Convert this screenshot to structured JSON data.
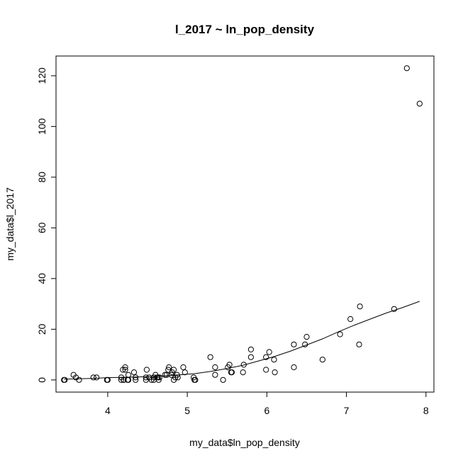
{
  "chart_data": {
    "type": "scatter",
    "title": "l_2017 ~ ln_pop_density",
    "xlabel": "my_data$ln_pop_density",
    "ylabel": "my_data$l_2017",
    "xlim": [
      3.35,
      8.1
    ],
    "ylim": [
      -4.8,
      127.8
    ],
    "xticks": [
      "4",
      "5",
      "6",
      "7",
      "8"
    ],
    "yticks": [
      "0",
      "20",
      "40",
      "60",
      "80",
      "100",
      "120"
    ],
    "grid": false,
    "legend": "none",
    "points": [
      [
        3.45,
        0
      ],
      [
        3.46,
        0
      ],
      [
        3.57,
        2
      ],
      [
        3.6,
        1
      ],
      [
        3.64,
        0
      ],
      [
        3.82,
        1
      ],
      [
        3.86,
        1
      ],
      [
        3.99,
        0
      ],
      [
        4.0,
        0
      ],
      [
        4.17,
        1
      ],
      [
        4.17,
        0
      ],
      [
        4.2,
        0
      ],
      [
        4.19,
        4
      ],
      [
        4.2,
        0
      ],
      [
        4.22,
        5
      ],
      [
        4.22,
        4
      ],
      [
        4.25,
        0
      ],
      [
        4.26,
        2
      ],
      [
        4.26,
        0
      ],
      [
        4.33,
        3
      ],
      [
        4.35,
        1
      ],
      [
        4.35,
        0
      ],
      [
        4.48,
        1
      ],
      [
        4.48,
        0
      ],
      [
        4.49,
        4
      ],
      [
        4.52,
        1
      ],
      [
        4.55,
        0
      ],
      [
        4.58,
        1
      ],
      [
        4.58,
        0
      ],
      [
        4.6,
        2
      ],
      [
        4.62,
        1
      ],
      [
        4.63,
        1
      ],
      [
        4.64,
        0
      ],
      [
        4.65,
        1
      ],
      [
        4.72,
        2
      ],
      [
        4.74,
        2
      ],
      [
        4.76,
        4
      ],
      [
        4.77,
        5
      ],
      [
        4.8,
        2
      ],
      [
        4.81,
        3
      ],
      [
        4.83,
        4
      ],
      [
        4.83,
        0
      ],
      [
        4.85,
        1
      ],
      [
        4.87,
        2
      ],
      [
        4.88,
        1
      ],
      [
        4.95,
        5
      ],
      [
        4.97,
        3
      ],
      [
        5.08,
        1
      ],
      [
        5.09,
        0
      ],
      [
        5.1,
        0
      ],
      [
        5.29,
        9
      ],
      [
        5.35,
        5
      ],
      [
        5.35,
        2
      ],
      [
        5.45,
        0
      ],
      [
        5.51,
        5
      ],
      [
        5.53,
        6
      ],
      [
        5.55,
        3
      ],
      [
        5.56,
        3
      ],
      [
        5.7,
        3
      ],
      [
        5.71,
        6
      ],
      [
        5.8,
        12
      ],
      [
        5.8,
        9
      ],
      [
        5.99,
        4
      ],
      [
        5.99,
        9
      ],
      [
        6.03,
        11
      ],
      [
        6.09,
        8
      ],
      [
        6.1,
        3
      ],
      [
        6.34,
        14
      ],
      [
        6.34,
        5
      ],
      [
        6.48,
        14
      ],
      [
        6.5,
        17
      ],
      [
        6.7,
        8
      ],
      [
        6.92,
        18
      ],
      [
        7.05,
        24
      ],
      [
        7.16,
        14
      ],
      [
        7.17,
        29
      ],
      [
        7.6,
        28
      ],
      [
        7.76,
        123
      ],
      [
        7.92,
        109
      ]
    ],
    "trend_line": {
      "x": [
        3.45,
        3.8,
        4.0,
        4.3,
        4.5,
        4.7,
        4.9,
        5.1,
        5.3,
        5.5,
        5.7,
        5.9,
        6.1,
        6.3,
        6.5,
        6.7,
        6.9,
        7.1,
        7.3,
        7.5,
        7.7,
        7.92
      ],
      "y": [
        0.3,
        0.6,
        0.9,
        1.1,
        1.3,
        1.6,
        2.0,
        2.5,
        3.4,
        4.5,
        5.8,
        7.5,
        9.3,
        11.4,
        13.8,
        16.2,
        19.0,
        21.6,
        24.0,
        26.4,
        28.5,
        31.0
      ]
    }
  }
}
